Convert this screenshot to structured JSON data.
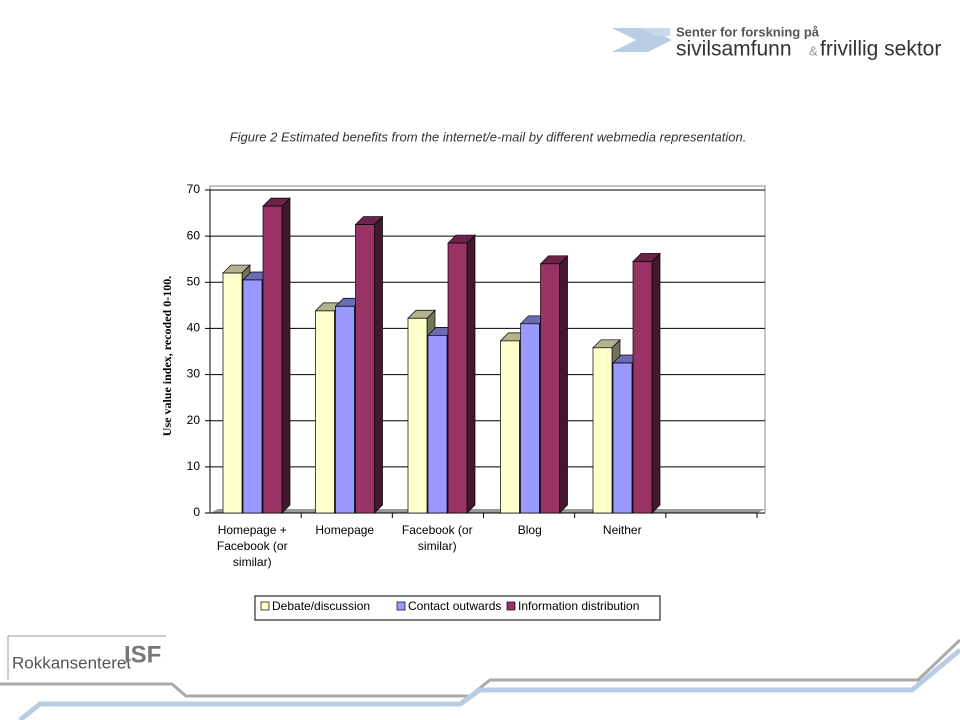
{
  "header": {
    "line1": "Senter for forskning på",
    "line2a": "sivilsamfunn",
    "amp": "&",
    "line2b": "frivillig sektor"
  },
  "footer": {
    "logo1": "Rokkansenteret",
    "logo2": "ISF"
  },
  "chart_data": {
    "type": "bar3d",
    "title": "Figure 2 Estimated benefits from the internet/e-mail by different webmedia representation.",
    "y_label": "Use value index, recoded 0-100.",
    "categories": [
      "Homepage + Facebook (or similar)",
      "Homepage",
      "Facebook (or similar)",
      "Blog",
      "Neither",
      null
    ],
    "series": [
      {
        "name": "Debate/discussion",
        "color": "#ffffcc",
        "values": [
          52,
          43.8,
          42.2,
          37.3,
          35.8,
          null
        ]
      },
      {
        "name": "Contact outwards",
        "color": "#9999ff",
        "values": [
          50.5,
          44.8,
          38.5,
          41,
          32.5,
          null
        ]
      },
      {
        "name": "Information distribution",
        "color": "#993366",
        "values": [
          66.5,
          62.5,
          58.5,
          54,
          54.5,
          null
        ]
      }
    ],
    "ylim": [
      0,
      70
    ],
    "yticks": [
      0,
      10,
      20,
      30,
      40,
      50,
      60,
      70
    ],
    "grid": true,
    "legend": "bottom"
  }
}
